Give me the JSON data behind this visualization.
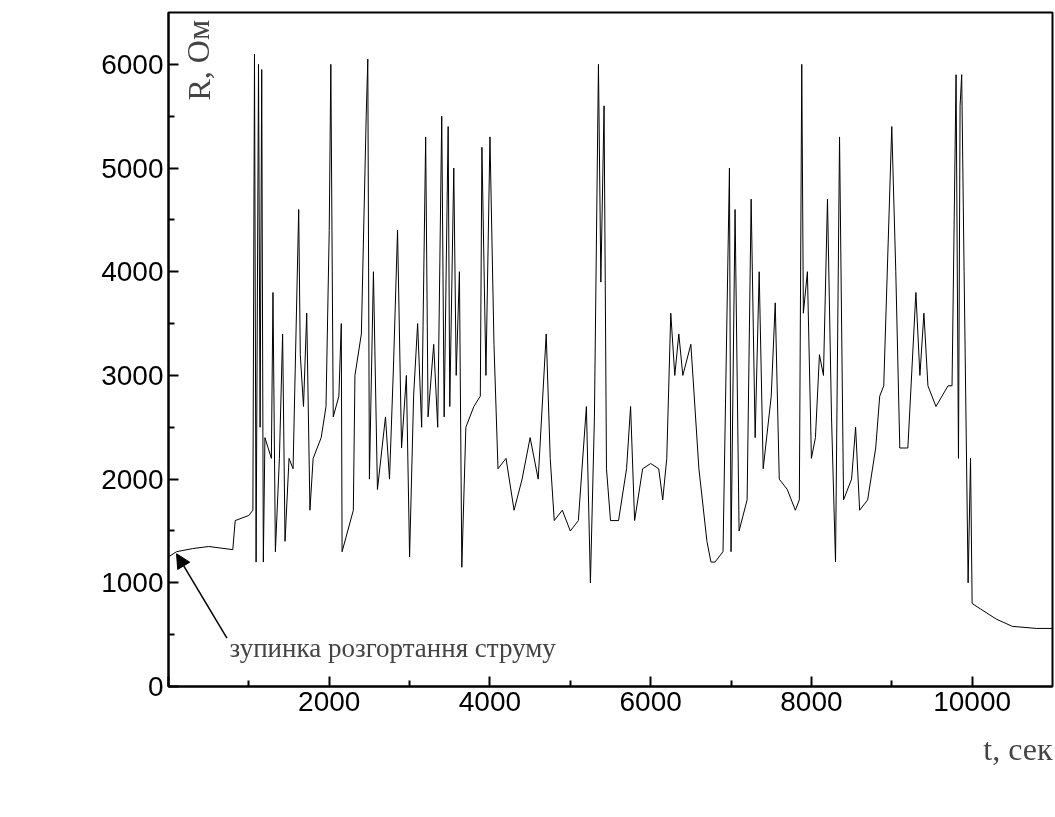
{
  "chart_data": {
    "type": "line",
    "xlabel": "t, сек",
    "ylabel": "R, Ом",
    "xlim": [
      0,
      11000
    ],
    "ylim": [
      0,
      6500
    ],
    "xticks": [
      {
        "value": 0,
        "label": null
      },
      2000,
      4000,
      6000,
      8000,
      10000
    ],
    "yticks": [
      0,
      1000,
      2000,
      3000,
      4000,
      5000,
      6000
    ],
    "grid": false,
    "marker": "none",
    "line_style": "solid",
    "annotations": [
      {
        "text": "зупинка розгортання струму",
        "x": 100,
        "y": 1280
      }
    ],
    "series": [
      {
        "color": "#000000",
        "x": [
          0,
          100,
          300,
          500,
          800,
          830,
          1000,
          1050,
          1070,
          1090,
          1120,
          1140,
          1160,
          1180,
          1200,
          1280,
          1300,
          1330,
          1380,
          1420,
          1450,
          1500,
          1550,
          1620,
          1640,
          1680,
          1720,
          1760,
          1800,
          1900,
          1960,
          2000,
          2020,
          2050,
          2120,
          2150,
          2160,
          2300,
          2320,
          2400,
          2460,
          2480,
          2500,
          2550,
          2600,
          2700,
          2750,
          2800,
          2850,
          2900,
          2960,
          3000,
          3050,
          3100,
          3150,
          3200,
          3230,
          3300,
          3350,
          3400,
          3430,
          3480,
          3500,
          3550,
          3580,
          3620,
          3650,
          3700,
          3800,
          3880,
          3900,
          3950,
          4000,
          4050,
          4100,
          4200,
          4300,
          4400,
          4500,
          4600,
          4700,
          4750,
          4800,
          4900,
          5000,
          5100,
          5200,
          5250,
          5300,
          5350,
          5380,
          5420,
          5450,
          5500,
          5600,
          5700,
          5750,
          5800,
          5900,
          6000,
          6100,
          6150,
          6200,
          6250,
          6300,
          6350,
          6400,
          6500,
          6600,
          6700,
          6750,
          6800,
          6900,
          6980,
          7000,
          7050,
          7100,
          7200,
          7250,
          7300,
          7350,
          7400,
          7500,
          7550,
          7600,
          7700,
          7800,
          7850,
          7880,
          7900,
          7950,
          8000,
          8050,
          8100,
          8150,
          8200,
          8250,
          8300,
          8350,
          8400,
          8500,
          8550,
          8600,
          8700,
          8800,
          8850,
          8900,
          9000,
          9050,
          9100,
          9200,
          9300,
          9350,
          9400,
          9450,
          9550,
          9700,
          9750,
          9800,
          9830,
          9850,
          9870,
          9900,
          9950,
          9980,
          10000,
          10100,
          10300,
          10500,
          10800,
          11000
        ],
        "values": [
          1250,
          1300,
          1330,
          1350,
          1320,
          1600,
          1650,
          1700,
          6100,
          1200,
          6000,
          2500,
          5950,
          1200,
          2400,
          2200,
          3800,
          1300,
          2200,
          3400,
          1400,
          2200,
          2100,
          4600,
          3200,
          2700,
          3600,
          1700,
          2200,
          2400,
          2700,
          4400,
          6000,
          2600,
          2800,
          3500,
          1300,
          1700,
          3000,
          3400,
          5500,
          6050,
          2000,
          4000,
          1900,
          2600,
          2000,
          3100,
          4400,
          2300,
          3000,
          1250,
          2800,
          3500,
          2500,
          5300,
          2600,
          3300,
          2500,
          5500,
          2600,
          5400,
          2700,
          5000,
          3000,
          4000,
          1150,
          2500,
          2700,
          2800,
          5200,
          3000,
          5300,
          3300,
          2100,
          2200,
          1700,
          2000,
          2400,
          2000,
          3400,
          2200,
          1600,
          1700,
          1500,
          1600,
          2700,
          1000,
          2600,
          6000,
          3900,
          5600,
          2100,
          1600,
          1600,
          2100,
          2700,
          1600,
          2100,
          2150,
          2100,
          1800,
          2200,
          3600,
          3000,
          3400,
          3000,
          3300,
          2100,
          1400,
          1200,
          1200,
          1300,
          5000,
          1300,
          4600,
          1500,
          1800,
          4700,
          2400,
          4000,
          2100,
          2800,
          3700,
          2000,
          1900,
          1700,
          1800,
          6000,
          3600,
          4000,
          2200,
          2400,
          3200,
          3000,
          4700,
          2600,
          1200,
          5300,
          1800,
          2000,
          2500,
          1700,
          1800,
          2300,
          2800,
          2900,
          5400,
          4000,
          2300,
          2300,
          3800,
          3000,
          3600,
          2900,
          2700,
          2900,
          2900,
          5900,
          2200,
          5600,
          5900,
          4000,
          1000,
          2200,
          800,
          750,
          650,
          580,
          560,
          560
        ]
      }
    ]
  }
}
